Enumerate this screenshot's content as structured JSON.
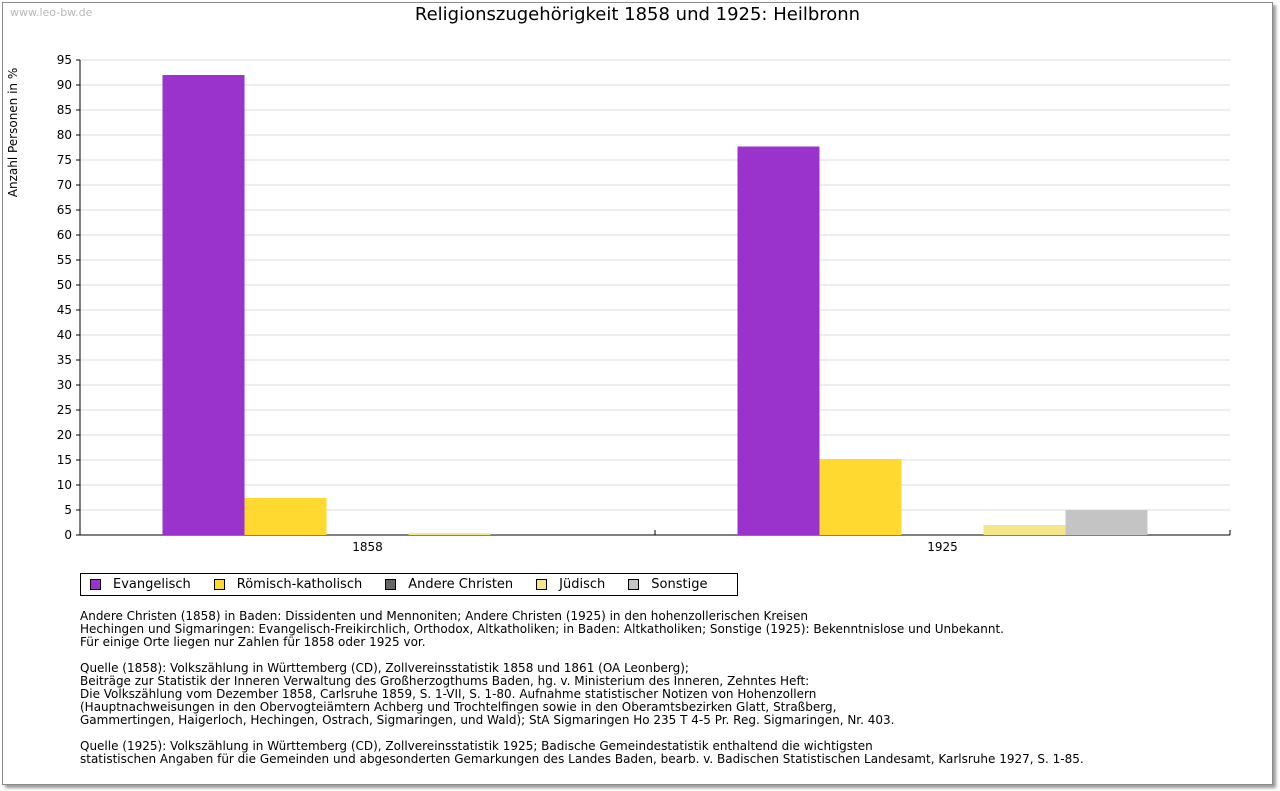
{
  "watermark": "www.leo-bw.de",
  "chart_data": {
    "type": "bar",
    "title": "Religionszugehörigkeit 1858 und 1925: Heilbronn",
    "ylabel": "Anzahl Personen in %",
    "xlabel": "",
    "categories": [
      "1858",
      "1925"
    ],
    "ylim": [
      0,
      95
    ],
    "yticks": [
      0,
      5,
      10,
      15,
      20,
      25,
      30,
      35,
      40,
      45,
      50,
      55,
      60,
      65,
      70,
      75,
      80,
      85,
      90,
      95
    ],
    "grid": true,
    "legend_position": "bottom",
    "series": [
      {
        "name": "Evangelisch",
        "color": "#9933cc",
        "values": [
          92.0,
          77.7
        ]
      },
      {
        "name": "Römisch-katholisch",
        "color": "#ffd92f",
        "values": [
          7.4,
          15.2
        ]
      },
      {
        "name": "Andere Christen",
        "color": "#666666",
        "values": [
          0,
          0
        ]
      },
      {
        "name": "Jüdisch",
        "color": "#f6e68a",
        "values": [
          0.4,
          2.0
        ]
      },
      {
        "name": "Sonstige",
        "color": "#c4c4c4",
        "values": [
          0,
          5.0
        ]
      }
    ]
  },
  "notes": [
    [
      "Andere Christen (1858) in Baden: Dissidenten und Mennoniten; Andere Christen (1925) in den hohenzollerischen Kreisen",
      "Hechingen und Sigmaringen: Evangelisch-Freikirchlich, Orthodox, Altkatholiken; in Baden: Altkatholiken; Sonstige (1925): Bekenntnislose und Unbekannt.",
      "Für einige Orte liegen nur Zahlen für 1858 oder 1925 vor."
    ],
    [
      "Quelle (1858): Volkszählung in Württemberg (CD), Zollvereinsstatistik 1858 und 1861 (OA Leonberg);",
      "Beiträge zur Statistik der Inneren Verwaltung des Großherzogthums Baden, hg. v. Ministerium des Inneren, Zehntes Heft:",
      "Die Volkszählung vom Dezember 1858, Carlsruhe 1859, S. 1-VII, S. 1-80. Aufnahme statistischer Notizen von Hohenzollern",
      "(Hauptnachweisungen in den Obervogteiämtern Achberg und Trochtelfingen sowie in den Oberamtsbezirken Glatt, Straßberg,",
      "Gammertingen, Haigerloch, Hechingen, Ostrach, Sigmaringen, und Wald); StA Sigmaringen Ho 235 T 4-5 Pr. Reg. Sigmaringen, Nr. 403."
    ],
    [
      "Quelle (1925): Volkszählung in Württemberg (CD), Zollvereinsstatistik 1925; Badische Gemeindestatistik enthaltend die wichtigsten",
      "statistischen Angaben für die Gemeinden und abgesonderten Gemarkungen des Landes Baden, bearb. v. Badischen Statistischen Landesamt, Karlsruhe 1927, S. 1-85."
    ]
  ]
}
